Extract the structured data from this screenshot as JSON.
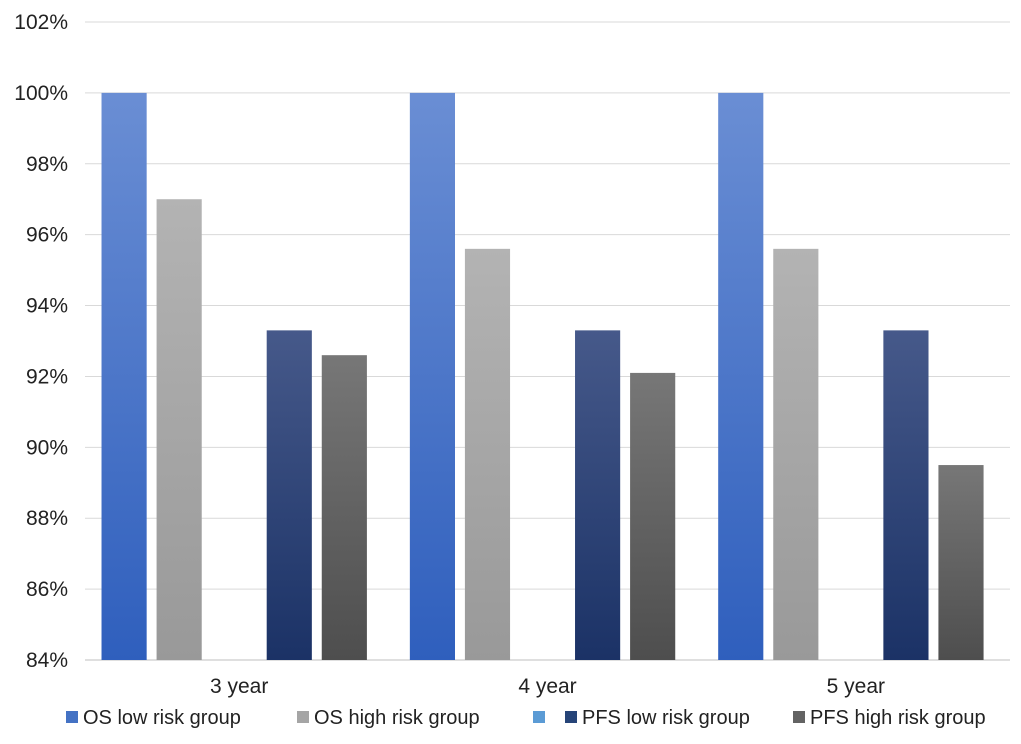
{
  "chart_data": {
    "type": "bar",
    "title": "",
    "xlabel": "",
    "ylabel": "",
    "categories": [
      "3 year",
      "4 year",
      "5 year"
    ],
    "ylim": [
      84,
      102
    ],
    "ytick_step": 2,
    "ytick_suffix": "%",
    "grid": true,
    "legend_position": "bottom",
    "series": [
      {
        "name": "OS low risk group",
        "values": [
          100,
          100,
          100
        ],
        "color": "#4472c4",
        "color_top": "#6a8ed4",
        "color_bottom": "#2f5fbd"
      },
      {
        "name": "OS high risk group",
        "values": [
          97.0,
          95.6,
          95.6
        ],
        "color": "#a5a5a5",
        "color_top": "#b3b3b3",
        "color_bottom": "#999999"
      },
      {
        "name": "",
        "values": [
          null,
          null,
          null
        ],
        "color": "#5b9bd5",
        "color_top": "#5b9bd5",
        "color_bottom": "#5b9bd5"
      },
      {
        "name": "PFS low risk group",
        "values": [
          93.3,
          93.3,
          93.3
        ],
        "color": "#264478",
        "color_top": "#46598a",
        "color_bottom": "#1b3266"
      },
      {
        "name": "PFS high risk group",
        "values": [
          92.6,
          92.1,
          89.5
        ],
        "color": "#636363",
        "color_top": "#777777",
        "color_bottom": "#4e4e4e"
      }
    ]
  }
}
